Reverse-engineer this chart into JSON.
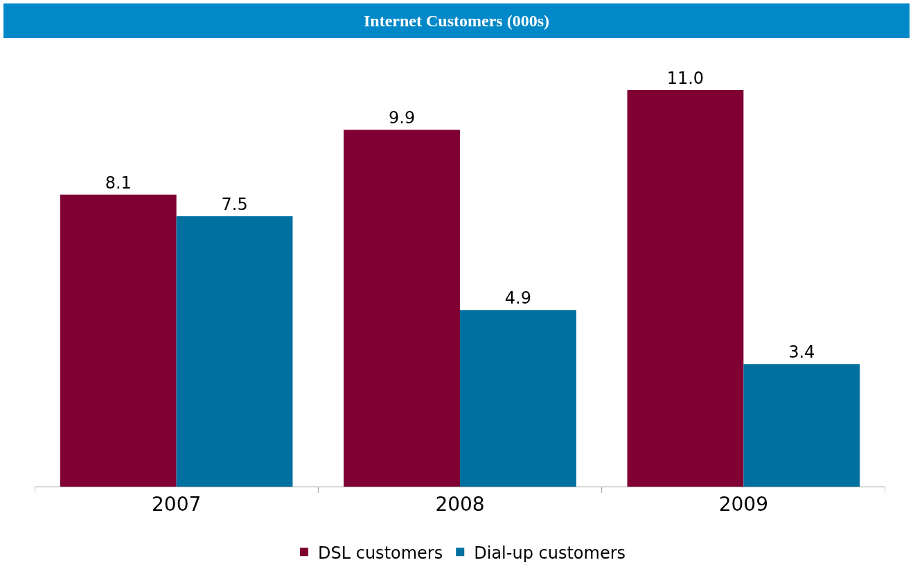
{
  "chart_data": {
    "type": "bar",
    "title": "Internet Customers (000s)",
    "categories": [
      "2007",
      "2008",
      "2009"
    ],
    "series": [
      {
        "name": "DSL customers",
        "color": "#800033",
        "values": [
          8.1,
          9.9,
          11.0
        ],
        "value_labels": [
          "8.1",
          "9.9",
          "11.0"
        ]
      },
      {
        "name": "Dial-up customers",
        "color": "#0070a0",
        "values": [
          7.5,
          4.9,
          3.4
        ],
        "value_labels": [
          "7.5",
          "4.9",
          "3.4"
        ]
      }
    ],
    "legend": "bottom"
  }
}
